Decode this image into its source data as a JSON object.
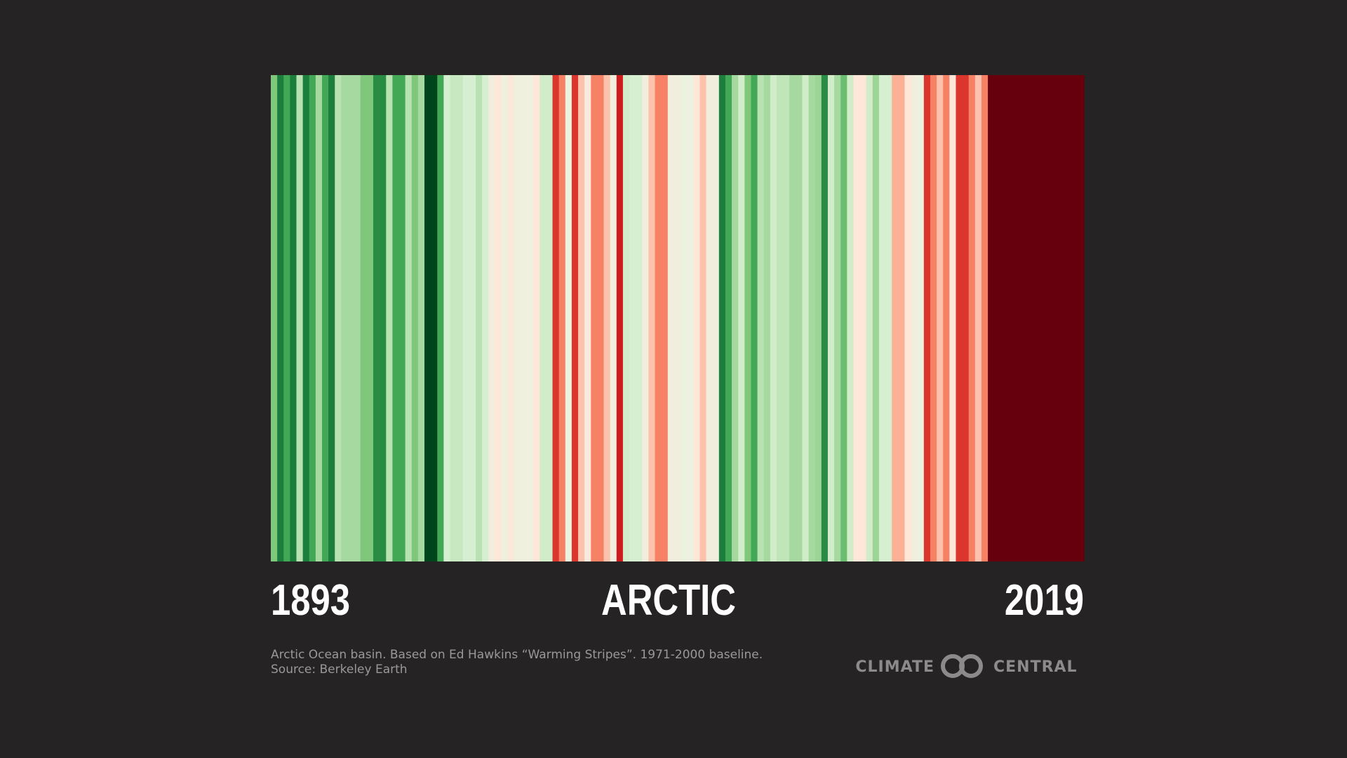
{
  "chart_data": {
    "type": "stripes",
    "title": "ARCTIC",
    "xlim": [
      1893,
      2019
    ],
    "vlim": [
      -3,
      3
    ],
    "color_scale": [
      "#00441b",
      "#1b7e3c",
      "#43a856",
      "#7fc87b",
      "#b8e2b1",
      "#e7f5e1",
      "#fee6d9",
      "#fcb095",
      "#f4694d",
      "#cd1c1d",
      "#67000d"
    ],
    "values": [
      -1.2,
      -2.4,
      -1.8,
      -2.4,
      -0.6,
      -2.4,
      -1.8,
      -0.8,
      -1.8,
      -2.4,
      -0.6,
      -0.8,
      -0.8,
      -0.8,
      -1.2,
      -1.2,
      -2.2,
      -2.2,
      -0.6,
      -1.8,
      -1.8,
      -0.6,
      -1.2,
      -0.8,
      -3,
      -3,
      -1.8,
      -0.2,
      -0.4,
      -0.4,
      -0.2,
      -0.2,
      -0.6,
      -0.2,
      0.3,
      0.6,
      0.2,
      0.5,
      0.2,
      0.2,
      0.2,
      0.6,
      -0.3,
      -0.3,
      2.2,
      1.6,
      0.1,
      2.2,
      1.0,
      0.4,
      1.6,
      1.6,
      1.0,
      0.3,
      2.4,
      -0.3,
      -0.2,
      -0.2,
      0.3,
      1.0,
      1.6,
      1.6,
      0.3,
      0.3,
      0.1,
      0.1,
      0.6,
      1.0,
      0.3,
      0.3,
      -2.4,
      -1.8,
      -0.8,
      -0.3,
      -1.2,
      -1.8,
      -0.6,
      -0.8,
      -0.3,
      -0.5,
      -0.5,
      -0.8,
      -0.8,
      -0.3,
      -0.8,
      -0.9,
      -2.2,
      -0.3,
      -0.8,
      -1.4,
      -0.3,
      0.6,
      0.6,
      -0.3,
      -0.9,
      -0.2,
      -0.2,
      1.2,
      1.2,
      0.6,
      0.3,
      0.1,
      2.2,
      1.6,
      1.0,
      1.6,
      0.6,
      2.2,
      2.2,
      1.6,
      1.0,
      1.6,
      3,
      3,
      3,
      3,
      3,
      3,
      3,
      3,
      3,
      3,
      3,
      3,
      3,
      3,
      3
    ],
    "note": "Arctic Ocean basin. Based on Ed Hawkins “Warming Stripes”. 1971-2000 baseline.",
    "source": "Source: Berkeley Earth"
  },
  "logo": {
    "left": "CLIMATE",
    "right": "CENTRAL"
  }
}
